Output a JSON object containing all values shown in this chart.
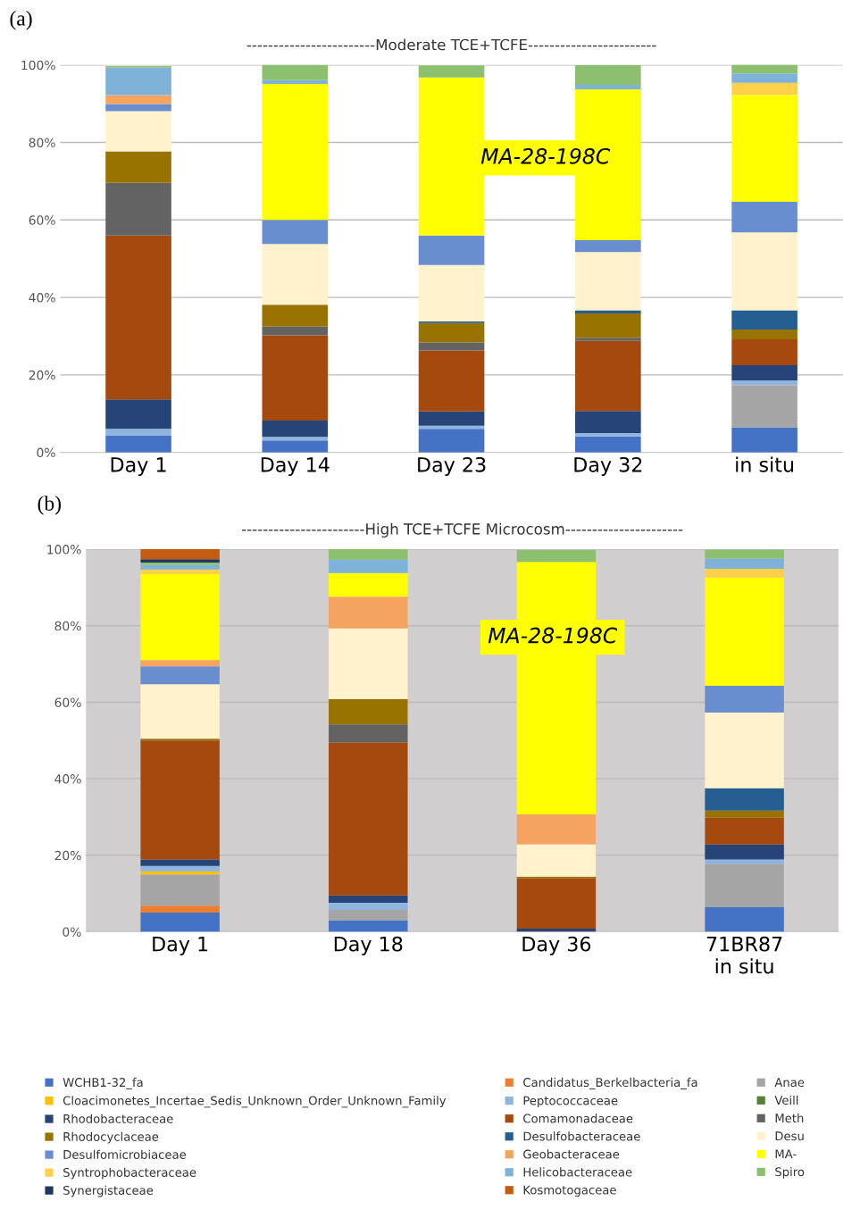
{
  "chart_data": [
    {
      "type": "bar",
      "stacked": true,
      "title": "------------------------Moderate TCE+TCFE------------------------",
      "categories": [
        "Day 1",
        "Day 14",
        "Day 23",
        "Day 32",
        "in situ"
      ],
      "ylim": [
        0,
        100
      ],
      "yticks": [
        {
          "value": 0,
          "label": "0%"
        },
        {
          "value": 20,
          "label": "20%"
        },
        {
          "value": 40,
          "label": "40%"
        },
        {
          "value": 60,
          "label": "60%"
        },
        {
          "value": 80,
          "label": "80%"
        },
        {
          "value": 100,
          "label": "100%"
        }
      ],
      "grid": "y",
      "annotations": [
        "(a)",
        "MA-28-198C"
      ],
      "series": [
        {
          "color": "#4472c4",
          "values": [
            4.4,
            3.1,
            6.1,
            4.1,
            6.5
          ]
        },
        {
          "color": "#ed7d31",
          "values": [
            0,
            0,
            0,
            0,
            0
          ]
        },
        {
          "color": "#a5a5a5",
          "values": [
            0,
            0,
            0,
            0,
            10.9
          ]
        },
        {
          "color": "#ffc000",
          "values": [
            0,
            0,
            0,
            0,
            0
          ]
        },
        {
          "color": "#8fb4de",
          "values": [
            1.7,
            0.9,
            0.8,
            0.9,
            1.2
          ]
        },
        {
          "color": "#548235",
          "values": [
            0,
            0,
            0,
            0,
            0
          ]
        },
        {
          "color": "#264478",
          "values": [
            7.6,
            4.2,
            3.7,
            5.7,
            3.9
          ]
        },
        {
          "color": "#a5490e",
          "values": [
            42.3,
            22.0,
            15.7,
            18.1,
            6.7
          ]
        },
        {
          "color": "#636363",
          "values": [
            13.6,
            2.3,
            2.1,
            0.8,
            0
          ]
        },
        {
          "color": "#997300",
          "values": [
            8.1,
            5.6,
            5.0,
            6.3,
            2.5
          ]
        },
        {
          "color": "#255e91",
          "values": [
            0,
            0,
            0.4,
            0.8,
            5.0
          ]
        },
        {
          "color": "#fff2cc",
          "values": [
            10.4,
            15.7,
            14.6,
            15.0,
            20.1
          ]
        },
        {
          "color": "#698ed0",
          "values": [
            1.8,
            6.2,
            7.6,
            3.1,
            7.9
          ]
        },
        {
          "color": "#f4a460",
          "values": [
            2.3,
            0,
            0,
            0,
            0
          ]
        },
        {
          "color": "#ffff00",
          "values": [
            0,
            35.1,
            40.8,
            38.9,
            27.6
          ]
        },
        {
          "color": "#ffd04a",
          "values": [
            0,
            0,
            0,
            0,
            3.1
          ]
        },
        {
          "color": "#7fb2d9",
          "values": [
            7.1,
            1.0,
            0,
            1.2,
            2.4
          ]
        },
        {
          "color": "#8cc06e",
          "values": [
            0.4,
            4.0,
            3.1,
            5.1,
            2.4
          ]
        },
        {
          "color": "#1f3864",
          "values": [
            0,
            0,
            0,
            0,
            0
          ]
        },
        {
          "color": "#c55a11",
          "values": [
            0,
            0,
            0,
            0,
            0
          ]
        }
      ]
    },
    {
      "type": "bar",
      "stacked": true,
      "title": "-----------------------High TCE+TCFE Microcosm----------------------",
      "categories": [
        "Day 1",
        "Day 18",
        "Day 36",
        "71BR87\nin situ"
      ],
      "ylim": [
        0,
        100
      ],
      "yticks": [
        {
          "value": 0,
          "label": "0%"
        },
        {
          "value": 20,
          "label": "20%"
        },
        {
          "value": 40,
          "label": "40%"
        },
        {
          "value": 60,
          "label": "60%"
        },
        {
          "value": 80,
          "label": "80%"
        },
        {
          "value": 100,
          "label": "100%"
        }
      ],
      "grid": "y",
      "legend": "bottom",
      "annotations": [
        "(b)",
        "MA-28-198C"
      ],
      "series": [
        {
          "name": "WCHB1-32_fa",
          "color": "#4472c4",
          "values": [
            5.0,
            3.0,
            0,
            6.4
          ]
        },
        {
          "name": "Candidatus_Berkelbacteria_fa",
          "color": "#ed7d31",
          "values": [
            1.8,
            0,
            0,
            0
          ]
        },
        {
          "name": "Anae",
          "color": "#a5a5a5",
          "values": [
            8.2,
            2.7,
            0,
            11.3
          ]
        },
        {
          "name": "Cloacimonetes_Incertae_Sedis_Unknown_Order_Unknown_Family",
          "color": "#ffc000",
          "values": [
            0.8,
            0,
            0,
            0
          ]
        },
        {
          "name": "Peptococcaceae",
          "color": "#8fb4de",
          "values": [
            1.4,
            1.9,
            0,
            1.2
          ]
        },
        {
          "name": "Veill",
          "color": "#548235",
          "values": [
            0,
            0,
            0,
            0
          ]
        },
        {
          "name": "Rhodobacteraceae",
          "color": "#264478",
          "values": [
            1.7,
            1.9,
            0.8,
            3.9
          ]
        },
        {
          "name": "Comamonadaceae",
          "color": "#a5490e",
          "values": [
            31.1,
            40.0,
            13.2,
            7.0
          ]
        },
        {
          "name": "Meth",
          "color": "#636363",
          "values": [
            0,
            4.7,
            0,
            0
          ]
        },
        {
          "name": "Rhodocyclaceae",
          "color": "#997300",
          "values": [
            0.5,
            6.6,
            0.4,
            1.9
          ]
        },
        {
          "name": "Desulfobacteraceae",
          "color": "#255e91",
          "values": [
            0,
            0,
            0,
            5.8
          ]
        },
        {
          "name": "Desu",
          "color": "#fff2cc",
          "values": [
            14.2,
            18.5,
            8.5,
            19.8
          ]
        },
        {
          "name": "Desulfomicrobiaceae",
          "color": "#698ed0",
          "values": [
            4.7,
            0,
            0,
            7.0
          ]
        },
        {
          "name": "Geobacteraceae",
          "color": "#f4a460",
          "values": [
            1.6,
            8.3,
            7.8,
            0
          ]
        },
        {
          "name": "MA-",
          "color": "#ffff00",
          "values": [
            22.5,
            6.2,
            66.0,
            28.3
          ]
        },
        {
          "name": "Syntrophobacteraceae",
          "color": "#ffd04a",
          "values": [
            1.2,
            0,
            0,
            2.3
          ]
        },
        {
          "name": "Helicobacteraceae",
          "color": "#7fb2d9",
          "values": [
            1.2,
            3.5,
            0,
            2.7
          ]
        },
        {
          "name": "Spiro",
          "color": "#8cc06e",
          "values": [
            0.6,
            2.7,
            3.1,
            2.3
          ]
        },
        {
          "name": "Synergistaceae",
          "color": "#1f3864",
          "values": [
            0.9,
            0,
            0,
            0
          ]
        },
        {
          "name": "Kosmotogaceae",
          "color": "#c55a11",
          "values": [
            2.7,
            0,
            0,
            0
          ]
        }
      ]
    }
  ]
}
